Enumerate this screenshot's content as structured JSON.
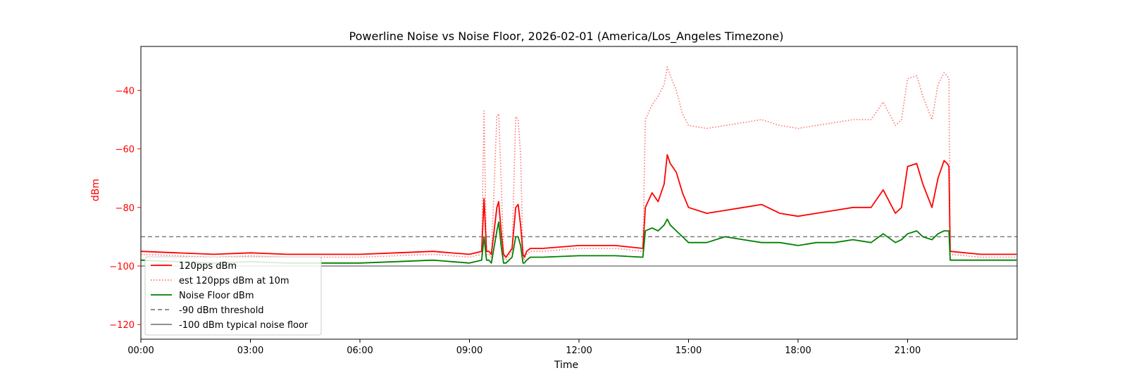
{
  "chart_data": {
    "type": "line",
    "title": "Powerline Noise vs Noise Floor, 2026-02-01 (America/Los_Angeles Timezone)",
    "xlabel": "Time",
    "ylabel": "dBm",
    "xlim": [
      "00:00",
      "24:00"
    ],
    "ylim": [
      -125,
      -25
    ],
    "x_ticks": [
      "00:00",
      "03:00",
      "06:00",
      "09:00",
      "12:00",
      "15:00",
      "18:00",
      "21:00"
    ],
    "y_ticks": [
      -40,
      -60,
      -80,
      -100,
      -120
    ],
    "grid": false,
    "legend_position": "lower-left",
    "colors": {
      "signal": "#ff0000",
      "estimate": "#ff7070",
      "noise_floor": "#008000",
      "threshold": "#808080",
      "typical_floor": "#808080",
      "axis_label_left": "#ff0000"
    },
    "series": [
      {
        "name": "120pps dBm",
        "style": "solid",
        "x": [
          "00:00",
          "01:00",
          "02:00",
          "03:00",
          "04:00",
          "05:00",
          "06:00",
          "07:00",
          "08:00",
          "09:00",
          "09:20",
          "09:24",
          "09:28",
          "09:32",
          "09:36",
          "09:45",
          "09:48",
          "09:52",
          "09:56",
          "10:00",
          "10:10",
          "10:16",
          "10:20",
          "10:24",
          "10:28",
          "10:30",
          "10:34",
          "10:40",
          "11:00",
          "12:00",
          "13:00",
          "13:45",
          "13:49",
          "14:00",
          "14:10",
          "14:20",
          "14:25",
          "14:30",
          "14:40",
          "14:50",
          "15:00",
          "15:30",
          "16:00",
          "16:30",
          "17:00",
          "17:30",
          "18:00",
          "18:30",
          "19:00",
          "19:30",
          "20:00",
          "20:20",
          "20:40",
          "20:50",
          "21:00",
          "21:15",
          "21:25",
          "21:40",
          "21:50",
          "22:00",
          "22:05",
          "22:08",
          "22:10",
          "23:00",
          "23:59"
        ],
        "values": [
          -95,
          -95.5,
          -96,
          -95.5,
          -96,
          -96,
          -96,
          -95.5,
          -95,
          -96,
          -95,
          -77,
          -95,
          -95,
          -96,
          -80,
          -78,
          -88,
          -96,
          -97,
          -94,
          -80,
          -79,
          -86,
          -96,
          -97,
          -95,
          -94,
          -94,
          -93,
          -93,
          -94,
          -80,
          -75,
          -78,
          -72,
          -62,
          -65,
          -68,
          -75,
          -80,
          -82,
          -81,
          -80,
          -79,
          -82,
          -83,
          -82,
          -81,
          -80,
          -80,
          -74,
          -82,
          -80,
          -66,
          -65,
          -72,
          -80,
          -70,
          -64,
          -65,
          -66,
          -95,
          -96,
          -96
        ]
      },
      {
        "name": "est 120pps dBm at 10m",
        "style": "dotted",
        "x": [
          "00:00",
          "01:00",
          "02:00",
          "03:00",
          "04:00",
          "05:00",
          "06:00",
          "07:00",
          "08:00",
          "09:00",
          "09:20",
          "09:24",
          "09:28",
          "09:32",
          "09:36",
          "09:45",
          "09:48",
          "09:52",
          "09:56",
          "10:00",
          "10:10",
          "10:16",
          "10:20",
          "10:24",
          "10:28",
          "10:30",
          "10:34",
          "10:40",
          "11:00",
          "12:00",
          "13:00",
          "13:45",
          "13:49",
          "14:00",
          "14:10",
          "14:20",
          "14:25",
          "14:30",
          "14:40",
          "14:50",
          "15:00",
          "15:30",
          "16:00",
          "16:30",
          "17:00",
          "17:30",
          "18:00",
          "18:30",
          "19:00",
          "19:30",
          "20:00",
          "20:20",
          "20:40",
          "20:50",
          "21:00",
          "21:15",
          "21:25",
          "21:40",
          "21:50",
          "22:00",
          "22:05",
          "22:08",
          "22:10",
          "23:00",
          "23:59"
        ],
        "values": [
          -96,
          -96.5,
          -97,
          -96.5,
          -97,
          -97,
          -97,
          -96.5,
          -96,
          -97,
          -96,
          -47,
          -96,
          -96,
          -97,
          -49,
          -48,
          -70,
          -97,
          -98,
          -95,
          -49,
          -50,
          -62,
          -97,
          -98,
          -96,
          -95,
          -95,
          -94,
          -94,
          -95,
          -50,
          -45,
          -42,
          -38,
          -32,
          -35,
          -40,
          -48,
          -52,
          -53,
          -52,
          -51,
          -50,
          -52,
          -53,
          -52,
          -51,
          -50,
          -50,
          -44,
          -52,
          -50,
          -36,
          -35,
          -42,
          -50,
          -38,
          -34,
          -35,
          -36,
          -96,
          -97,
          -97
        ]
      },
      {
        "name": "Noise Floor dBm",
        "style": "solid",
        "x": [
          "00:00",
          "01:00",
          "02:00",
          "03:00",
          "04:00",
          "05:00",
          "06:00",
          "07:00",
          "08:00",
          "09:00",
          "09:20",
          "09:24",
          "09:28",
          "09:32",
          "09:36",
          "09:45",
          "09:48",
          "09:52",
          "09:56",
          "10:00",
          "10:10",
          "10:16",
          "10:20",
          "10:24",
          "10:28",
          "10:30",
          "10:34",
          "10:40",
          "11:00",
          "12:00",
          "13:00",
          "13:45",
          "13:49",
          "14:00",
          "14:10",
          "14:20",
          "14:25",
          "14:30",
          "14:40",
          "14:50",
          "15:00",
          "15:30",
          "16:00",
          "16:30",
          "17:00",
          "17:30",
          "18:00",
          "18:30",
          "19:00",
          "19:30",
          "20:00",
          "20:20",
          "20:40",
          "20:50",
          "21:00",
          "21:15",
          "21:25",
          "21:40",
          "21:50",
          "22:00",
          "22:05",
          "22:08",
          "22:10",
          "23:00",
          "23:59"
        ],
        "values": [
          -98,
          -98.5,
          -99,
          -98.5,
          -99,
          -99,
          -99,
          -98.5,
          -98,
          -99,
          -98,
          -90,
          -98,
          -98,
          -99,
          -88,
          -85,
          -93,
          -99,
          -99,
          -97,
          -90,
          -90,
          -93,
          -99,
          -99,
          -98,
          -97,
          -97,
          -96.5,
          -96.5,
          -97,
          -88,
          -87,
          -88,
          -86,
          -84,
          -86,
          -88,
          -90,
          -92,
          -92,
          -90,
          -91,
          -92,
          -92,
          -93,
          -92,
          -92,
          -91,
          -92,
          -89,
          -92,
          -91,
          -89,
          -88,
          -90,
          -91,
          -89,
          -88,
          -88,
          -88,
          -98,
          -98,
          -98
        ]
      }
    ],
    "reference_lines": [
      {
        "name": "-90 dBm threshold",
        "value": -90,
        "style": "dashed"
      },
      {
        "name": "-100 dBm typical noise floor",
        "value": -100,
        "style": "solid"
      }
    ]
  }
}
